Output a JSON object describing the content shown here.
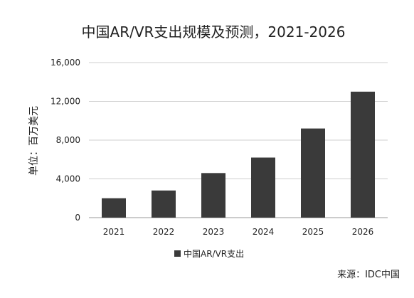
{
  "chart_data": {
    "type": "bar",
    "title": "中国AR/VR支出规模及预测，2021-2026",
    "ylabel": "单位：百万美元",
    "xlabel": "",
    "categories": [
      "2021",
      "2022",
      "2023",
      "2024",
      "2025",
      "2026"
    ],
    "series": [
      {
        "name": "中国AR/VR支出",
        "values": [
          2000,
          2800,
          4600,
          6200,
          9200,
          13000
        ]
      }
    ],
    "ylim": [
      0,
      16000
    ],
    "yticks": [
      0,
      4000,
      8000,
      12000,
      16000
    ],
    "ytick_labels": [
      "0",
      "4,000",
      "8,000",
      "12,000",
      "16,000"
    ],
    "grid": true,
    "legend_position": "bottom",
    "source": "来源：IDC中国",
    "colors": {
      "bar": "#3a3a3a",
      "grid": "#cfcfcf",
      "text": "#222222"
    }
  }
}
